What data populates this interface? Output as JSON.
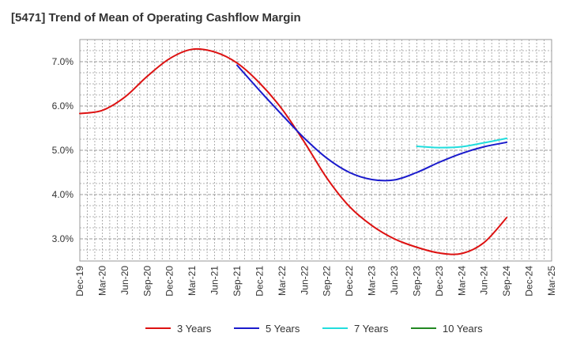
{
  "chart_data": {
    "type": "line",
    "title": "[5471]  Trend of Mean of Operating Cashflow Margin",
    "xlabel": "",
    "ylabel": "",
    "x_ticks": [
      "Dec-19",
      "Mar-20",
      "Jun-20",
      "Sep-20",
      "Dec-20",
      "Mar-21",
      "Jun-21",
      "Sep-21",
      "Dec-21",
      "Mar-22",
      "Jun-22",
      "Sep-22",
      "Dec-22",
      "Mar-23",
      "Jun-23",
      "Sep-23",
      "Dec-23",
      "Mar-24",
      "Jun-24",
      "Sep-24",
      "Dec-24",
      "Mar-25"
    ],
    "y_ticks": [
      "3.0%",
      "4.0%",
      "5.0%",
      "6.0%",
      "7.0%"
    ],
    "ylim": [
      2.5,
      7.5
    ],
    "y_tick_values": [
      3.0,
      4.0,
      5.0,
      6.0,
      7.0
    ],
    "grid": true,
    "legend_position": "bottom",
    "series": [
      {
        "name": "3 Years",
        "color": "#dd1111",
        "x": [
          "Dec-19",
          "Mar-20",
          "Jun-20",
          "Sep-20",
          "Dec-20",
          "Mar-21",
          "Jun-21",
          "Sep-21",
          "Dec-21",
          "Mar-22",
          "Jun-22",
          "Sep-22",
          "Dec-22",
          "Mar-23",
          "Jun-23",
          "Sep-23",
          "Dec-23",
          "Mar-24",
          "Jun-24",
          "Sep-24"
        ],
        "values": [
          5.83,
          5.9,
          6.2,
          6.67,
          7.07,
          7.28,
          7.22,
          6.97,
          6.52,
          5.93,
          5.18,
          4.37,
          3.73,
          3.3,
          3.0,
          2.81,
          2.68,
          2.67,
          2.92,
          3.48
        ]
      },
      {
        "name": "5 Years",
        "color": "#1a1acc",
        "x": [
          "Sep-21",
          "Dec-21",
          "Mar-22",
          "Jun-22",
          "Sep-22",
          "Dec-22",
          "Mar-23",
          "Jun-23",
          "Sep-23",
          "Dec-23",
          "Mar-24",
          "Jun-24",
          "Sep-24"
        ],
        "values": [
          6.92,
          6.35,
          5.8,
          5.27,
          4.82,
          4.5,
          4.34,
          4.33,
          4.5,
          4.73,
          4.93,
          5.08,
          5.18
        ]
      },
      {
        "name": "7 Years",
        "color": "#22dddd",
        "x": [
          "Sep-23",
          "Dec-23",
          "Mar-24",
          "Jun-24",
          "Sep-24"
        ],
        "values": [
          5.09,
          5.06,
          5.08,
          5.17,
          5.27
        ]
      },
      {
        "name": "10 Years",
        "color": "#228822",
        "x": [],
        "values": []
      }
    ]
  }
}
